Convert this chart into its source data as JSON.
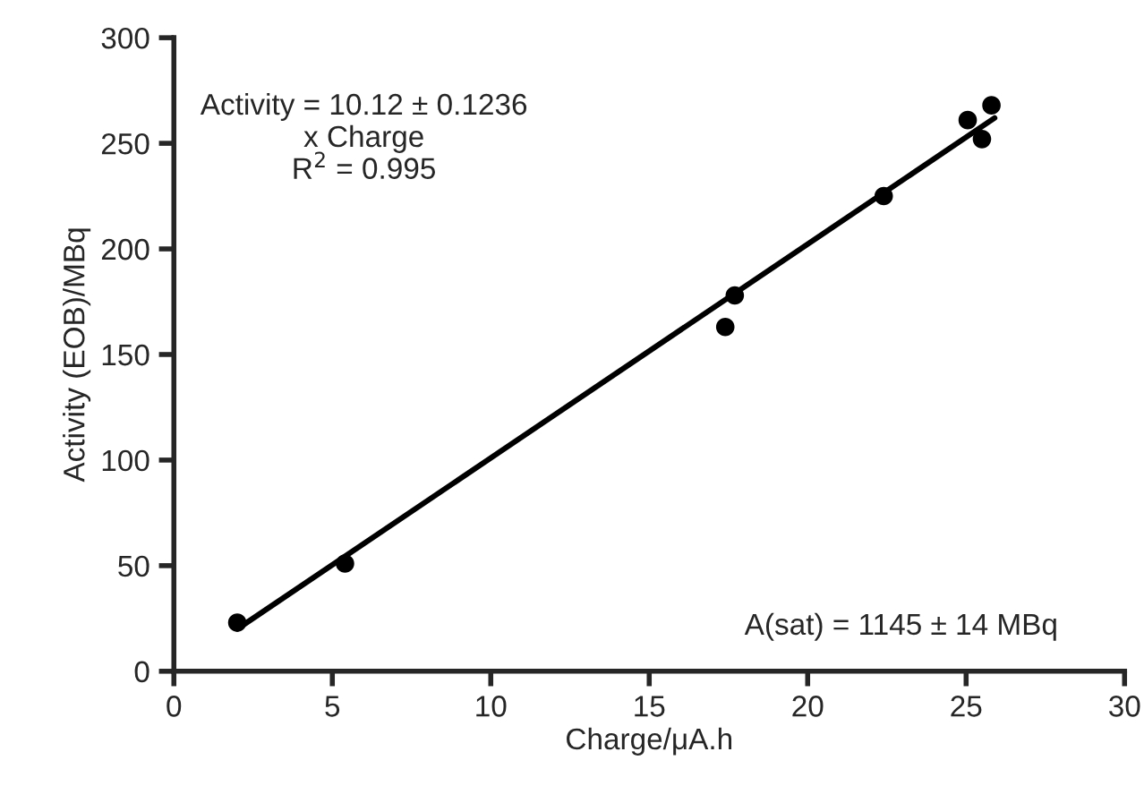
{
  "chart_data": {
    "type": "scatter",
    "xlabel": "Charge/μA.h",
    "ylabel": "Activity (EOB)/MBq",
    "x": [
      2.0,
      5.4,
      17.4,
      17.7,
      22.4,
      25.05,
      25.5,
      25.8
    ],
    "series": [
      {
        "color": "#000000",
        "values": [
          23,
          51,
          163,
          178,
          225,
          261,
          252,
          268
        ],
        "marker": "circle"
      },
      {
        "type": "line",
        "color": "#000000",
        "x": [
          2.0,
          25.9
        ],
        "values": [
          20,
          262
        ],
        "marker": "none"
      }
    ],
    "xlim": [
      0,
      30
    ],
    "ylim": [
      0,
      300
    ],
    "xticks": [
      0,
      5,
      10,
      15,
      20,
      25,
      30
    ],
    "yticks": [
      0,
      50,
      100,
      150,
      200,
      250,
      300
    ],
    "grid": false,
    "legend": false,
    "annotations": [
      "Activity = 10.12 ± 0.1236\nx Charge\nR$^{2}$ = 0.995",
      "A(sat) = 1145 ± 14 MBq"
    ]
  }
}
